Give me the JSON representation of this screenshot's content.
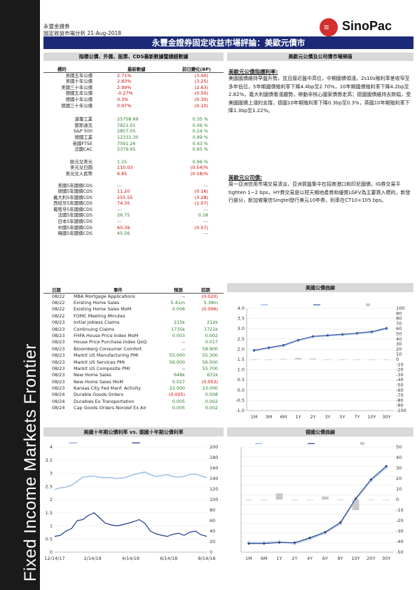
{
  "sidebar": {
    "text": "Fixed Income Markets Frontier"
  },
  "header": {
    "company": "永豐金證券",
    "subtitle": "固定收益市場分析 21-Aug-2018",
    "logo_glyph": "≡",
    "logo_text": "SinoPac",
    "banner": "永豐金證券固定收益市場評論：美歐元債市"
  },
  "left_section": {
    "title": "指標公債、外匯、股票、CDS最新數據暨總經數據",
    "headers": {
      "name": "標的",
      "latest": "最新數據",
      "prev": "前日變化(BP)"
    },
    "bonds": [
      {
        "name": "美國五年公債",
        "latest": "2.71%",
        "prev": "(3.40)",
        "color": "red"
      },
      {
        "name": "美國十年公債",
        "latest": "2.83%",
        "prev": "(3.25)",
        "color": "red"
      },
      {
        "name": "美國三十年公債",
        "latest": "2.99%",
        "prev": "(2.63)",
        "color": "red"
      },
      {
        "name": "德國五年公債",
        "latest": "-0.27%",
        "prev": "(0.50)",
        "color": "red"
      },
      {
        "name": "德國十年公債",
        "latest": "0.3%",
        "prev": "(0.30)",
        "color": "red"
      },
      {
        "name": "德國三十年公債",
        "latest": "0.97%",
        "prev": "(0.10)",
        "color": "red"
      }
    ],
    "equities": [
      {
        "name": "道瓊工業",
        "latest": "25758.69",
        "prev": "0.35 %"
      },
      {
        "name": "那斯達克",
        "latest": "7821.01",
        "prev": "0.06 %"
      },
      {
        "name": "S&P 500",
        "latest": "2857.05",
        "prev": "0.24 %"
      },
      {
        "name": "德國工業",
        "latest": "12331.30",
        "prev": "0.99 %"
      },
      {
        "name": "英國FTSE",
        "latest": "7591.26",
        "prev": "0.43 %"
      },
      {
        "name": "法國CAC",
        "latest": "5379.65",
        "prev": "0.65 %"
      }
    ],
    "fx": [
      {
        "name": "歐元兌美元",
        "latest": "1.15",
        "prev": "0.96 %",
        "color": "green"
      },
      {
        "name": "美元兌日圓",
        "latest": "110.03",
        "prev": "(0.54)%",
        "color": "red"
      },
      {
        "name": "美元兌人民幣",
        "latest": "6.85",
        "prev": "(0.18)%",
        "color": "red"
      }
    ],
    "cds": [
      {
        "name": "美國5年國債CDS",
        "latest": "---",
        "prev": "---",
        "color": "gray"
      },
      {
        "name": "德國5年國債CDS",
        "latest": "11.20",
        "prev": "(0.16)",
        "color": "red"
      },
      {
        "name": "義大利5年國債CDS",
        "latest": "255.55",
        "prev": "(3.28)",
        "color": "red"
      },
      {
        "name": "西班牙5年國債CDS",
        "latest": "74.35",
        "prev": "(1.07)",
        "color": "red"
      },
      {
        "name": "葡萄牙5年國債CDS",
        "latest": "---",
        "prev": "---",
        "color": "gray"
      },
      {
        "name": "法國5年國債CDS",
        "latest": "26.75",
        "prev": "0.18",
        "color": "green"
      },
      {
        "name": "日本5年國債CDS",
        "latest": "---",
        "prev": "---",
        "color": "gray"
      },
      {
        "name": "中國5年國債CDS",
        "latest": "60.39",
        "prev": "(0.57)",
        "color": "red"
      },
      {
        "name": "韓國5年國債CDS",
        "latest": "45.56",
        "prev": "---",
        "color": "green"
      }
    ]
  },
  "right_section": {
    "title": "美歐元公債及公司債市場掃描",
    "p1_title": "美歐元公債指標利率:",
    "p1": "美國國債維持早盤升勢，並且接近盤中高位，中期國債領漲，2s10s殖利率差收窄至多年低位，5年期國債殖利率下降4.4bp至2.70%，10年期國債殖利率下降4.2bp至2.82%，義大利國債看漲趨勢，帶動非核心國家債券走高；德國國債維持去跌幅，受美國國債上漲的支撐，德國10年期殖利率下降0.3bp至0.3%，英國10年期殖利率下降1.3bp至1.22%。",
    "p2_title": "美歐元公司債:",
    "p2": "周一亞洲信用市場交易清淡，亞洲買盤集中在招商港口和印尼國債，IG券交易平tighten 1~2 bps，HY券交易是以短天期地產券和優質LGFV為主要買入標的，新發行部分，新加坡電信Singtel發行美元10年券，利率在CT10+105 bps。"
  },
  "calendar": {
    "headers": {
      "date": "日期",
      "event": "事件",
      "forecast": "預測",
      "actual": "前期"
    },
    "rows": [
      {
        "date": "08/22",
        "event": "MBA Mortgage Applications",
        "forecast": "--",
        "actual": "(0.020)",
        "a_color": "red"
      },
      {
        "date": "08/22",
        "event": "Existing Home Sales",
        "forecast": "5.41m",
        "actual": "5.38m",
        "f_color": "green",
        "a_color": "green"
      },
      {
        "date": "08/22",
        "event": "Existing Home Sales MoM",
        "forecast": "0.006",
        "actual": "(0.006)",
        "f_color": "green",
        "a_color": "red"
      },
      {
        "date": "08/22",
        "event": "FOMC Meeting Minutes",
        "forecast": "",
        "actual": ""
      },
      {
        "date": "08/23",
        "event": "Initial Jobless Claims",
        "forecast": "215k",
        "actual": "212k",
        "f_color": "green",
        "a_color": "green"
      },
      {
        "date": "08/23",
        "event": "Continuing Claims",
        "forecast": "1735k",
        "actual": "1721k",
        "f_color": "green",
        "a_color": "green"
      },
      {
        "date": "08/23",
        "event": "FHFA House Price Index MoM",
        "forecast": "0.003",
        "actual": "0.002",
        "f_color": "green",
        "a_color": "green"
      },
      {
        "date": "08/23",
        "event": "House Price Purchase Index QoQ",
        "forecast": "--",
        "actual": "0.017",
        "a_color": "green"
      },
      {
        "date": "08/23",
        "event": "Bloomberg Consumer Comfort",
        "forecast": "--",
        "actual": "58.900",
        "a_color": "green"
      },
      {
        "date": "08/23",
        "event": "Markit US Manufacturing PMI",
        "forecast": "55.000",
        "actual": "55.300",
        "f_color": "green",
        "a_color": "green"
      },
      {
        "date": "08/23",
        "event": "Markit US Services PMI",
        "forecast": "56.000",
        "actual": "56.000",
        "f_color": "green",
        "a_color": "green"
      },
      {
        "date": "08/23",
        "event": "Markit US Composite PMI",
        "forecast": "--",
        "actual": "55.700",
        "a_color": "green"
      },
      {
        "date": "08/23",
        "event": "New Home Sales",
        "forecast": "648k",
        "actual": "631k",
        "f_color": "green",
        "a_color": "green"
      },
      {
        "date": "08/23",
        "event": "New Home Sales MoM",
        "forecast": "0.027",
        "actual": "(0.053)",
        "f_color": "green",
        "a_color": "red"
      },
      {
        "date": "08/23",
        "event": "Kansas City Fed Manf. Activity",
        "forecast": "22.000",
        "actual": "23.000",
        "f_color": "green",
        "a_color": "green"
      },
      {
        "date": "08/24",
        "event": "Durable Goods Orders",
        "forecast": "(0.005)",
        "actual": "0.008",
        "f_color": "red",
        "a_color": "green"
      },
      {
        "date": "08/24",
        "event": "Durables Ex Transportation",
        "forecast": "0.005",
        "actual": "0.002",
        "f_color": "green",
        "a_color": "green"
      },
      {
        "date": "08/24",
        "event": "Cap Goods Orders Nondef Ex Air",
        "forecast": "0.005",
        "actual": "0.002",
        "f_color": "green",
        "a_color": "green"
      }
    ]
  },
  "chart_data": [
    {
      "type": "line",
      "title": "美國公債曲線",
      "categories": [
        "1M",
        "3M",
        "6M",
        "1Y",
        "2Y",
        "3Y",
        "5Y",
        "7Y",
        "10Y",
        "30Y"
      ],
      "series": [
        {
          "name": "",
          "values": [
            1.93,
            2.05,
            2.18,
            2.42,
            2.61,
            2.66,
            2.7,
            2.76,
            2.82,
            3.0
          ]
        },
        {
          "name": "",
          "values": [
            1.95,
            2.08,
            2.2,
            2.45,
            2.63,
            2.68,
            2.73,
            2.79,
            2.86,
            3.03
          ]
        },
        {
          "name": "",
          "values": [
            0,
            0,
            1,
            3,
            2,
            0,
            0,
            0,
            0,
            0
          ]
        }
      ],
      "ylim": [
        -1.0,
        4.0
      ],
      "y2lim": [
        -100,
        100
      ],
      "colors": [
        "#b7cfe8",
        "#2f4fa8",
        "#c9c9c9"
      ]
    },
    {
      "type": "line",
      "title": "美國十年期公債利率 vs. 德國十年期公債利率",
      "x_labels": [
        "12/14/17",
        "2/14/18",
        "4/14/18",
        "6/14/18",
        "8/14/18"
      ],
      "series": [
        {
          "name": "",
          "axis": "left",
          "values": [
            2.38,
            2.45,
            2.47,
            2.55,
            2.7,
            2.85,
            2.88,
            2.9,
            2.85,
            2.83,
            2.84,
            2.8,
            2.82,
            2.87,
            2.95,
            3.0,
            3.05,
            2.95,
            2.88,
            2.92,
            2.95,
            2.88,
            2.85,
            2.89,
            2.96,
            2.97,
            2.91,
            2.83
          ]
        },
        {
          "name": "",
          "axis": "right",
          "values": [
            30,
            32,
            40,
            45,
            60,
            62,
            70,
            75,
            65,
            55,
            52,
            50,
            52,
            55,
            58,
            62,
            55,
            40,
            35,
            32,
            30,
            34,
            36,
            32,
            38,
            40,
            33,
            30
          ]
        }
      ],
      "ylim": [
        0,
        4
      ],
      "y2lim": [
        0,
        200
      ],
      "colors": [
        "#9fc0e6",
        "#1f3a8a"
      ]
    },
    {
      "type": "line",
      "title": "德國公債曲線",
      "categories": [
        "1M",
        "6M",
        "1Y",
        "2Y",
        "4Y",
        "6Y",
        "8Y",
        "10Y",
        "20Y",
        "30Y"
      ],
      "series": [
        {
          "name": "",
          "values": [
            -0.6,
            -0.6,
            -0.58,
            -0.62,
            -0.52,
            -0.4,
            -0.2,
            0.3,
            0.7,
            0.97
          ]
        },
        {
          "name": "",
          "values": [
            -0.62,
            -0.62,
            -0.6,
            -0.6,
            -0.5,
            -0.38,
            -0.18,
            0.32,
            0.72,
            1.0
          ]
        },
        {
          "name": "",
          "values": [
            0,
            0,
            6,
            0,
            0,
            3,
            0,
            -10,
            0,
            0
          ]
        }
      ],
      "ylim": [
        -0.8,
        1.4
      ],
      "y2lim": [
        -50,
        50
      ],
      "colors": [
        "#b7cfe8",
        "#1f3a8a",
        "#c9c9c9"
      ]
    }
  ]
}
